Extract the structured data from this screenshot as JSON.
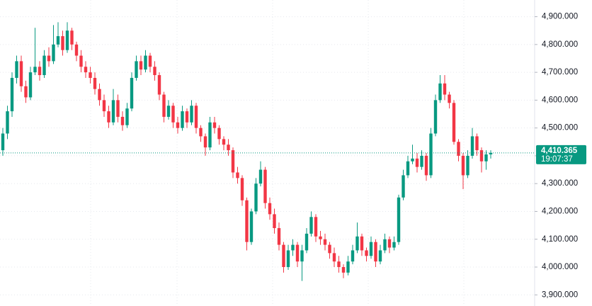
{
  "chart_data": {
    "type": "candlestick",
    "ohlc": [
      [
        4420,
        4500,
        4400,
        4480
      ],
      [
        4480,
        4580,
        4460,
        4560
      ],
      [
        4560,
        4700,
        4540,
        4680
      ],
      [
        4680,
        4760,
        4660,
        4740
      ],
      [
        4740,
        4760,
        4630,
        4650
      ],
      [
        4650,
        4670,
        4590,
        4610
      ],
      [
        4610,
        4720,
        4600,
        4700
      ],
      [
        4700,
        4860,
        4690,
        4720
      ],
      [
        4720,
        4740,
        4670,
        4690
      ],
      [
        4690,
        4780,
        4680,
        4760
      ],
      [
        4760,
        4790,
        4720,
        4740
      ],
      [
        4740,
        4870,
        4730,
        4800
      ],
      [
        4800,
        4880,
        4790,
        4830
      ],
      [
        4830,
        4850,
        4760,
        4780
      ],
      [
        4780,
        4880,
        4770,
        4850
      ],
      [
        4850,
        4860,
        4780,
        4800
      ],
      [
        4800,
        4810,
        4740,
        4760
      ],
      [
        4760,
        4780,
        4700,
        4720
      ],
      [
        4720,
        4740,
        4680,
        4700
      ],
      [
        4700,
        4720,
        4660,
        4680
      ],
      [
        4680,
        4700,
        4620,
        4640
      ],
      [
        4640,
        4660,
        4580,
        4600
      ],
      [
        4600,
        4620,
        4540,
        4560
      ],
      [
        4560,
        4580,
        4500,
        4520
      ],
      [
        4520,
        4640,
        4510,
        4600
      ],
      [
        4600,
        4620,
        4520,
        4540
      ],
      [
        4540,
        4560,
        4490,
        4510
      ],
      [
        4510,
        4590,
        4500,
        4570
      ],
      [
        4570,
        4700,
        4560,
        4680
      ],
      [
        4680,
        4760,
        4670,
        4740
      ],
      [
        4740,
        4760,
        4690,
        4710
      ],
      [
        4710,
        4780,
        4700,
        4760
      ],
      [
        4760,
        4770,
        4700,
        4720
      ],
      [
        4720,
        4740,
        4670,
        4690
      ],
      [
        4690,
        4700,
        4600,
        4620
      ],
      [
        4620,
        4630,
        4520,
        4540
      ],
      [
        4540,
        4600,
        4530,
        4580
      ],
      [
        4580,
        4590,
        4500,
        4520
      ],
      [
        4520,
        4540,
        4480,
        4500
      ],
      [
        4500,
        4580,
        4490,
        4560
      ],
      [
        4560,
        4570,
        4500,
        4520
      ],
      [
        4520,
        4600,
        4510,
        4580
      ],
      [
        4580,
        4590,
        4480,
        4500
      ],
      [
        4500,
        4510,
        4450,
        4470
      ],
      [
        4470,
        4480,
        4400,
        4430
      ],
      [
        4430,
        4540,
        4420,
        4520
      ],
      [
        4520,
        4540,
        4480,
        4500
      ],
      [
        4500,
        4510,
        4440,
        4460
      ],
      [
        4460,
        4470,
        4420,
        4440
      ],
      [
        4440,
        4460,
        4400,
        4420
      ],
      [
        4420,
        4430,
        4320,
        4340
      ],
      [
        4340,
        4360,
        4300,
        4320
      ],
      [
        4320,
        4330,
        4220,
        4240
      ],
      [
        4240,
        4250,
        4060,
        4090
      ],
      [
        4090,
        4210,
        4080,
        4200
      ],
      [
        4200,
        4320,
        4190,
        4300
      ],
      [
        4300,
        4380,
        4290,
        4350
      ],
      [
        4350,
        4360,
        4210,
        4230
      ],
      [
        4230,
        4250,
        4170,
        4190
      ],
      [
        4190,
        4210,
        4120,
        4140
      ],
      [
        4140,
        4160,
        4060,
        4080
      ],
      [
        4080,
        4090,
        3980,
        4000
      ],
      [
        4000,
        4080,
        3990,
        4060
      ],
      [
        4060,
        4100,
        4040,
        4080
      ],
      [
        4080,
        4090,
        4000,
        4020
      ],
      [
        4020,
        4080,
        3950,
        4060
      ],
      [
        4060,
        4140,
        4050,
        4120
      ],
      [
        4120,
        4200,
        4110,
        4180
      ],
      [
        4180,
        4190,
        4090,
        4110
      ],
      [
        4110,
        4130,
        4080,
        4100
      ],
      [
        4100,
        4120,
        4060,
        4080
      ],
      [
        4080,
        4090,
        4030,
        4050
      ],
      [
        4050,
        4070,
        4000,
        4020
      ],
      [
        4020,
        4040,
        3980,
        4000
      ],
      [
        4000,
        4010,
        3960,
        3980
      ],
      [
        3980,
        4040,
        3970,
        4020
      ],
      [
        4020,
        4080,
        4010,
        4060
      ],
      [
        4060,
        4160,
        4050,
        4110
      ],
      [
        4110,
        4120,
        4040,
        4060
      ],
      [
        4060,
        4070,
        4020,
        4040
      ],
      [
        4040,
        4110,
        4030,
        4090
      ],
      [
        4090,
        4100,
        4000,
        4020
      ],
      [
        4020,
        4080,
        4010,
        4060
      ],
      [
        4060,
        4120,
        4050,
        4100
      ],
      [
        4100,
        4110,
        4050,
        4070
      ],
      [
        4070,
        4110,
        4060,
        4090
      ],
      [
        4090,
        4260,
        4080,
        4250
      ],
      [
        4250,
        4350,
        4240,
        4330
      ],
      [
        4330,
        4400,
        4320,
        4380
      ],
      [
        4380,
        4440,
        4370,
        4390
      ],
      [
        4390,
        4410,
        4340,
        4360
      ],
      [
        4360,
        4420,
        4350,
        4400
      ],
      [
        4400,
        4410,
        4310,
        4330
      ],
      [
        4330,
        4500,
        4320,
        4480
      ],
      [
        4480,
        4620,
        4470,
        4600
      ],
      [
        4600,
        4690,
        4590,
        4660
      ],
      [
        4660,
        4690,
        4600,
        4620
      ],
      [
        4620,
        4630,
        4570,
        4590
      ],
      [
        4590,
        4600,
        4440,
        4450
      ],
      [
        4450,
        4460,
        4380,
        4400
      ],
      [
        4400,
        4410,
        4280,
        4330
      ],
      [
        4330,
        4420,
        4320,
        4400
      ],
      [
        4400,
        4500,
        4390,
        4470
      ],
      [
        4470,
        4480,
        4400,
        4420
      ],
      [
        4420,
        4430,
        4340,
        4380
      ],
      [
        4380,
        4420,
        4350,
        4405
      ],
      [
        4405,
        4420,
        4390,
        4410.365
      ]
    ],
    "up_color": "#089981",
    "down_color": "#f23645",
    "ylim": [
      3860,
      4960
    ],
    "yticks": [
      {
        "value": 3900,
        "label": "3,900.000"
      },
      {
        "value": 4000,
        "label": "4,000.000"
      },
      {
        "value": 4100,
        "label": "4,100.000"
      },
      {
        "value": 4200,
        "label": "4,200.000"
      },
      {
        "value": 4300,
        "label": "4,300.000"
      },
      {
        "value": 4400,
        "label": "4,400.000"
      },
      {
        "value": 4500,
        "label": "4,500.000"
      },
      {
        "value": 4600,
        "label": "4,600.000"
      },
      {
        "value": 4700,
        "label": "4,700.000"
      },
      {
        "value": 4800,
        "label": "4,800.000"
      },
      {
        "value": 4900,
        "label": "4,900.000"
      }
    ],
    "grid": true,
    "last_price": {
      "value": 4410.365,
      "label": "4,410.365"
    },
    "countdown": "19:07:37"
  }
}
